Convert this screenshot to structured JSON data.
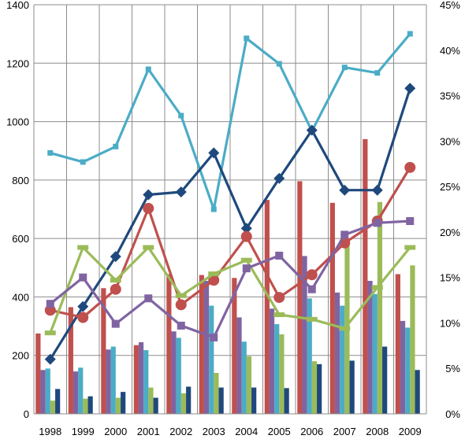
{
  "chart_data": {
    "type": "bar",
    "categories": [
      "1998",
      "1999",
      "2000",
      "2001",
      "2002",
      "2003",
      "2004",
      "2005",
      "2006",
      "2007",
      "2008",
      "2009"
    ],
    "title": "",
    "xlabel": "",
    "ylabel": "",
    "ylim": [
      0,
      1400
    ],
    "y_ticks": [
      "0",
      "200",
      "400",
      "600",
      "800",
      "1000",
      "1200",
      "1400"
    ],
    "y2lim": [
      0,
      45
    ],
    "y2_ticks": [
      "0%",
      "5%",
      "10%",
      "15%",
      "20%",
      "25%",
      "30%",
      "35%",
      "40%",
      "45%"
    ],
    "grid": true,
    "legend": "none",
    "bar_series": [
      {
        "color": "#c0504d",
        "values": [
          275,
          365,
          430,
          235,
          478,
          475,
          465,
          732,
          796,
          722,
          940,
          478
        ]
      },
      {
        "color": "#8064a2",
        "values": [
          150,
          145,
          220,
          245,
          282,
          455,
          330,
          360,
          540,
          415,
          455,
          318
        ]
      },
      {
        "color": "#4bacc6",
        "values": [
          155,
          158,
          230,
          218,
          260,
          370,
          247,
          307,
          395,
          370,
          410,
          295
        ]
      },
      {
        "color": "#9bbb59",
        "values": [
          45,
          52,
          55,
          90,
          70,
          140,
          197,
          272,
          180,
          590,
          725,
          508
        ]
      },
      {
        "color": "#1f497d",
        "values": [
          85,
          60,
          75,
          55,
          93,
          90,
          90,
          88,
          170,
          182,
          230,
          150
        ]
      }
    ],
    "line_series": [
      {
        "color": "#4bacc6",
        "marker": "square",
        "values": [
          28.7,
          27.7,
          29.4,
          37.9,
          32.8,
          22.5,
          41.3,
          38.5,
          31.1,
          38.1,
          37.5,
          41.8
        ]
      },
      {
        "color": "#1f497d",
        "marker": "diamond",
        "values": [
          6.0,
          11.8,
          17.3,
          24.1,
          24.4,
          28.7,
          20.4,
          25.9,
          31.2,
          24.6,
          24.6,
          35.8
        ]
      },
      {
        "color": "#c0504d",
        "marker": "circle",
        "values": [
          11.4,
          10.6,
          13.7,
          22.6,
          12.0,
          14.7,
          19.5,
          12.8,
          15.3,
          18.8,
          21.2,
          27.1
        ]
      },
      {
        "color": "#9bbb59",
        "marker": "dash",
        "values": [
          8.9,
          18.3,
          14.7,
          18.3,
          13.0,
          15.4,
          16.9,
          10.9,
          10.4,
          9.4,
          13.9,
          18.3
        ]
      },
      {
        "color": "#8064a2",
        "marker": "x",
        "values": [
          12.1,
          15.0,
          9.9,
          12.7,
          9.7,
          8.4,
          16.0,
          17.4,
          13.7,
          19.7,
          21.0,
          21.2
        ]
      }
    ]
  }
}
